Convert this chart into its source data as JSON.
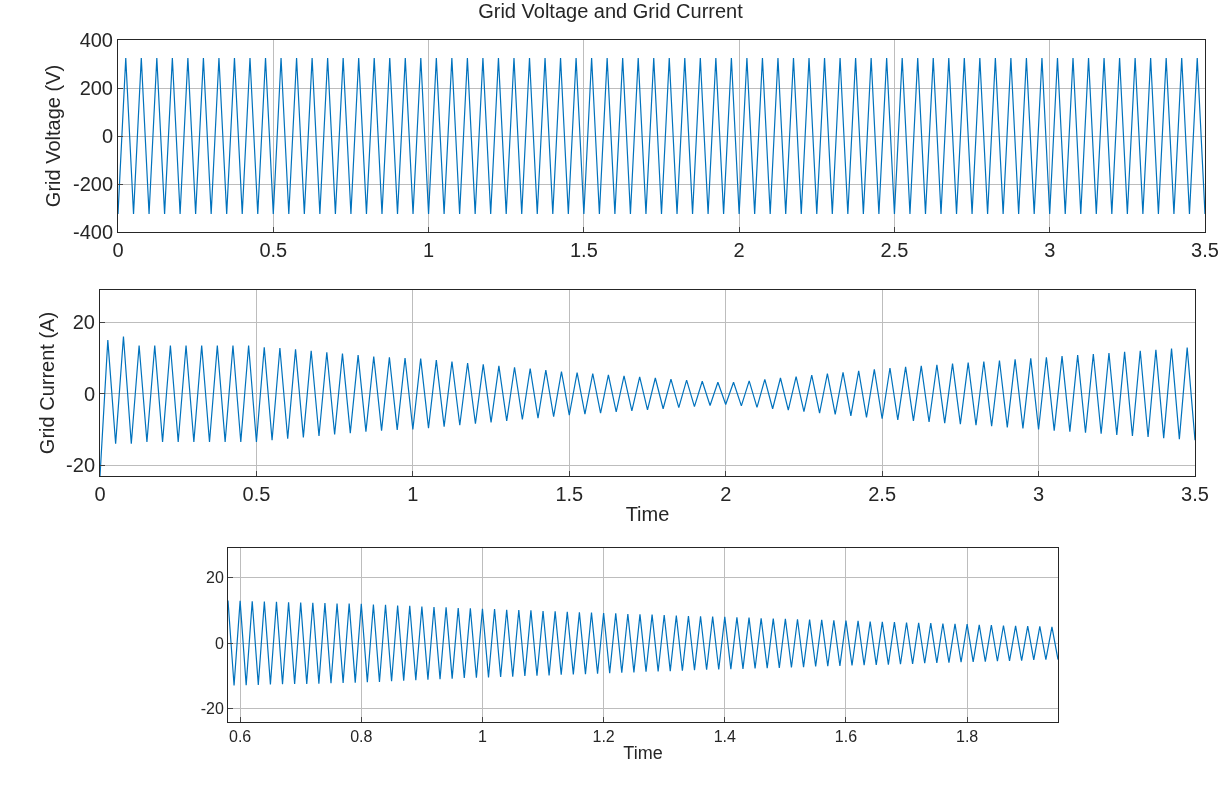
{
  "chart_data": [
    {
      "type": "line",
      "title": "Grid Voltage and Grid Current",
      "ylabel": "Grid Voltage (V)",
      "xlim": [
        0,
        3.5
      ],
      "ylim": [
        -400,
        400
      ],
      "xticks": [
        0,
        0.5,
        1,
        1.5,
        2,
        2.5,
        3,
        3.5
      ],
      "yticks": [
        -400,
        -200,
        0,
        200,
        400
      ],
      "grid": true,
      "x": [
        0,
        0.025,
        0.05,
        0.075,
        0.1,
        0.125,
        0.15,
        0.175,
        0.2,
        0.225,
        0.25,
        0.275,
        0.3,
        0.325,
        0.35,
        0.375,
        0.4,
        0.425,
        0.45,
        0.475,
        0.5,
        0.525,
        0.55,
        0.575,
        0.6,
        0.625,
        0.65,
        0.675,
        0.7,
        0.725,
        0.75,
        0.775,
        0.8,
        0.825,
        0.85,
        0.875,
        0.9,
        0.925,
        0.95,
        0.975,
        1,
        1.025,
        1.05,
        1.075,
        1.1,
        1.125,
        1.15,
        1.175,
        1.2,
        1.225,
        1.25,
        1.275,
        1.3,
        1.325,
        1.35,
        1.375,
        1.4,
        1.425,
        1.45,
        1.475,
        1.5,
        1.525,
        1.55,
        1.575,
        1.6,
        1.625,
        1.65,
        1.675,
        1.7,
        1.725,
        1.75,
        1.775,
        1.8,
        1.825,
        1.85,
        1.875,
        1.9,
        1.925,
        1.95,
        1.975,
        2,
        2.025,
        2.05,
        2.075,
        2.1,
        2.125,
        2.15,
        2.175,
        2.2,
        2.225,
        2.25,
        2.275,
        2.3,
        2.325,
        2.35,
        2.375,
        2.4,
        2.425,
        2.45,
        2.475,
        2.5,
        2.525,
        2.55,
        2.575,
        2.6,
        2.625,
        2.65,
        2.675,
        2.7,
        2.725,
        2.75,
        2.775,
        2.8,
        2.825,
        2.85,
        2.875,
        2.9,
        2.925,
        2.95,
        2.975,
        3,
        3.025,
        3.05,
        3.075,
        3.1,
        3.125,
        3.15,
        3.175,
        3.2,
        3.225,
        3.25,
        3.275,
        3.3,
        3.325,
        3.35,
        3.375,
        3.4,
        3.425,
        3.45,
        3.475,
        3.5
      ],
      "series": [
        {
          "color": "#0072bd",
          "values": [
            -325,
            325,
            -325,
            325,
            -325,
            325,
            -325,
            325,
            -325,
            325,
            -325,
            325,
            -325,
            325,
            -325,
            325,
            -325,
            325,
            -325,
            325,
            -325,
            325,
            -325,
            325,
            -325,
            325,
            -325,
            325,
            -325,
            325,
            -325,
            325,
            -325,
            325,
            -325,
            325,
            -325,
            325,
            -325,
            325,
            -325,
            325,
            -325,
            325,
            -325,
            325,
            -325,
            325,
            -325,
            325,
            -325,
            325,
            -325,
            325,
            -325,
            325,
            -325,
            325,
            -325,
            325,
            -325,
            325,
            -325,
            325,
            -325,
            325,
            -325,
            325,
            -325,
            325,
            -325,
            325,
            -325,
            325,
            -325,
            325,
            -325,
            325,
            -325,
            325,
            -325,
            325,
            -325,
            325,
            -325,
            325,
            -325,
            325,
            -325,
            325,
            -325,
            325,
            -325,
            325,
            -325,
            325,
            -325,
            325,
            -325,
            325,
            -325,
            325,
            -325,
            325,
            -325,
            325,
            -325,
            325,
            -325,
            325,
            -325,
            325,
            -325,
            325,
            -325,
            325,
            -325,
            325,
            -325,
            325,
            -325,
            325,
            -325,
            325,
            -325,
            325,
            -325,
            325,
            -325,
            325,
            -325,
            325,
            -325,
            325,
            -325,
            325,
            -325,
            325,
            -325,
            325,
            -325
          ]
        }
      ]
    },
    {
      "type": "line",
      "ylabel": "Grid Current (A)",
      "xlabel": "Time",
      "xlim": [
        0,
        3.5
      ],
      "ylim": [
        -23,
        29
      ],
      "xticks": [
        0,
        0.5,
        1,
        1.5,
        2,
        2.5,
        3,
        3.5
      ],
      "yticks": [
        -20,
        0,
        20
      ],
      "grid": true,
      "x": [
        0,
        0.025,
        0.05,
        0.075,
        0.1,
        0.125,
        0.15,
        0.175,
        0.2,
        0.225,
        0.25,
        0.275,
        0.3,
        0.325,
        0.35,
        0.375,
        0.4,
        0.425,
        0.45,
        0.475,
        0.5,
        0.525,
        0.55,
        0.575,
        0.6,
        0.625,
        0.65,
        0.675,
        0.7,
        0.725,
        0.75,
        0.775,
        0.8,
        0.825,
        0.85,
        0.875,
        0.9,
        0.925,
        0.95,
        0.975,
        1,
        1.025,
        1.05,
        1.075,
        1.1,
        1.125,
        1.15,
        1.175,
        1.2,
        1.225,
        1.25,
        1.275,
        1.3,
        1.325,
        1.35,
        1.375,
        1.4,
        1.425,
        1.45,
        1.475,
        1.5,
        1.525,
        1.55,
        1.575,
        1.6,
        1.625,
        1.65,
        1.675,
        1.7,
        1.725,
        1.75,
        1.775,
        1.8,
        1.825,
        1.85,
        1.875,
        1.9,
        1.925,
        1.95,
        1.975,
        2,
        2.025,
        2.05,
        2.075,
        2.1,
        2.125,
        2.15,
        2.175,
        2.2,
        2.225,
        2.25,
        2.275,
        2.3,
        2.325,
        2.35,
        2.375,
        2.4,
        2.425,
        2.45,
        2.475,
        2.5,
        2.525,
        2.55,
        2.575,
        2.6,
        2.625,
        2.65,
        2.675,
        2.7,
        2.725,
        2.75,
        2.775,
        2.8,
        2.825,
        2.85,
        2.875,
        2.9,
        2.925,
        2.95,
        2.975,
        3,
        3.025,
        3.05,
        3.075,
        3.1,
        3.125,
        3.15,
        3.175,
        3.2,
        3.225,
        3.25,
        3.275,
        3.3,
        3.325,
        3.35,
        3.375,
        3.4,
        3.425,
        3.45,
        3.475,
        3.5
      ],
      "series": [
        {
          "color": "#0072bd",
          "values": [
            -23,
            15,
            -14,
            16,
            -14,
            13.5,
            -13.5,
            13.5,
            -13.5,
            13.5,
            -13.5,
            13.5,
            -13.5,
            13.5,
            -13.5,
            13.5,
            -13.5,
            13.5,
            -13.5,
            13.5,
            -13.5,
            13,
            -13,
            12.8,
            -12.6,
            12.4,
            -12.2,
            12,
            -11.8,
            11.6,
            -11.4,
            11.2,
            -11,
            10.8,
            -10.6,
            10.4,
            -10.3,
            10.2,
            -10.1,
            10,
            -10,
            9.8,
            -9.6,
            9.4,
            -9.2,
            9,
            -8.8,
            8.6,
            -8.4,
            8.2,
            -8,
            7.8,
            -7.6,
            7.4,
            -7.2,
            7,
            -6.8,
            6.6,
            -6.4,
            6.2,
            -6,
            5.9,
            -5.7,
            5.6,
            -5.4,
            5.3,
            -5.1,
            5,
            -4.8,
            4.7,
            -4.5,
            4.4,
            -4.2,
            4.1,
            -3.9,
            3.8,
            -3.6,
            3.5,
            -3.3,
            3.2,
            -3,
            3.2,
            -3.4,
            3.6,
            -3.8,
            4,
            -4.2,
            4.4,
            -4.6,
            4.8,
            -5,
            5.2,
            -5.4,
            5.6,
            -5.8,
            6,
            -6.2,
            6.4,
            -6.6,
            6.8,
            -7,
            7.2,
            -7.3,
            7.5,
            -7.6,
            7.8,
            -7.9,
            8.1,
            -8.2,
            8.4,
            -8.5,
            8.7,
            -8.8,
            9,
            -9.1,
            9.3,
            -9.4,
            9.6,
            -9.7,
            9.9,
            -10,
            10.2,
            -10.3,
            10.5,
            -10.6,
            10.8,
            -10.9,
            11.1,
            -11.2,
            11.4,
            -11.5,
            11.7,
            -11.8,
            12,
            -12.1,
            12.3,
            -12.4,
            12.6,
            -12.7,
            12.9,
            -13
          ]
        }
      ]
    },
    {
      "type": "line",
      "xlabel": "Time",
      "xlim": [
        0.58,
        1.95
      ],
      "ylim": [
        -24,
        29
      ],
      "xticks": [
        0.6,
        0.8,
        1,
        1.2,
        1.4,
        1.6,
        1.8
      ],
      "yticks": [
        -20,
        0,
        20
      ],
      "grid": true,
      "x": [
        0.58,
        0.59,
        0.6,
        0.61,
        0.62,
        0.63,
        0.64,
        0.65,
        0.66,
        0.67,
        0.68,
        0.69,
        0.7,
        0.71,
        0.72,
        0.73,
        0.74,
        0.75,
        0.76,
        0.77,
        0.78,
        0.79,
        0.8,
        0.81,
        0.82,
        0.83,
        0.84,
        0.85,
        0.86,
        0.87,
        0.88,
        0.89,
        0.9,
        0.91,
        0.92,
        0.93,
        0.94,
        0.95,
        0.96,
        0.97,
        0.98,
        0.99,
        1,
        1.01,
        1.02,
        1.03,
        1.04,
        1.05,
        1.06,
        1.07,
        1.08,
        1.09,
        1.1,
        1.11,
        1.12,
        1.13,
        1.14,
        1.15,
        1.16,
        1.17,
        1.18,
        1.19,
        1.2,
        1.21,
        1.22,
        1.23,
        1.24,
        1.25,
        1.26,
        1.27,
        1.28,
        1.29,
        1.3,
        1.31,
        1.32,
        1.33,
        1.34,
        1.35,
        1.36,
        1.37,
        1.38,
        1.39,
        1.4,
        1.41,
        1.42,
        1.43,
        1.44,
        1.45,
        1.46,
        1.47,
        1.48,
        1.49,
        1.5,
        1.51,
        1.52,
        1.53,
        1.54,
        1.55,
        1.56,
        1.57,
        1.58,
        1.59,
        1.6,
        1.61,
        1.62,
        1.63,
        1.64,
        1.65,
        1.66,
        1.67,
        1.68,
        1.69,
        1.7,
        1.71,
        1.72,
        1.73,
        1.74,
        1.75,
        1.76,
        1.77,
        1.78,
        1.79,
        1.8,
        1.81,
        1.82,
        1.83,
        1.84,
        1.85,
        1.86,
        1.87,
        1.88,
        1.89,
        1.9,
        1.91,
        1.92,
        1.93,
        1.94,
        1.95
      ],
      "series": [
        {
          "color": "#0072bd",
          "values": [
            13,
            -12.9,
            12.9,
            -12.8,
            12.8,
            -12.7,
            12.7,
            -12.6,
            12.6,
            -12.5,
            12.5,
            -12.4,
            12.4,
            -12.4,
            12.3,
            -12.3,
            12.2,
            -12.2,
            12.1,
            -12.1,
            12.1,
            -12,
            12,
            -11.9,
            11.8,
            -11.8,
            11.7,
            -11.6,
            11.5,
            -11.4,
            11.4,
            -11.3,
            11.2,
            -11.1,
            11,
            -11,
            10.9,
            -10.8,
            10.7,
            -10.6,
            10.6,
            -10.5,
            10.5,
            -10.4,
            10.4,
            -10.3,
            10.2,
            -10.2,
            10.1,
            -10,
            10,
            -9.9,
            9.8,
            -9.8,
            9.7,
            -9.6,
            9.6,
            -9.5,
            9.4,
            -9.4,
            9.3,
            -9.3,
            9.2,
            -9.1,
            9.1,
            -9,
            8.9,
            -8.9,
            8.8,
            -8.7,
            8.7,
            -8.6,
            8.6,
            -8.5,
            8.4,
            -8.4,
            8.3,
            -8.2,
            8.2,
            -8.1,
            8.1,
            -8,
            8,
            -7.9,
            7.9,
            -7.8,
            7.8,
            -7.7,
            7.6,
            -7.6,
            7.5,
            -7.5,
            7.4,
            -7.4,
            7.3,
            -7.3,
            7.2,
            -7.1,
            7.1,
            -7,
            7,
            -6.9,
            6.9,
            -6.8,
            6.8,
            -6.7,
            6.6,
            -6.6,
            6.5,
            -6.5,
            6.4,
            -6.4,
            6.3,
            -6.3,
            6.2,
            -6.1,
            6.1,
            -6,
            6,
            -5.9,
            5.9,
            -5.8,
            5.8,
            -5.7,
            5.6,
            -5.6,
            5.5,
            -5.5,
            5.4,
            -5.4,
            5.3,
            -5.3,
            5.2,
            -5.1,
            5.1,
            -5,
            5,
            -5
          ]
        }
      ]
    }
  ]
}
